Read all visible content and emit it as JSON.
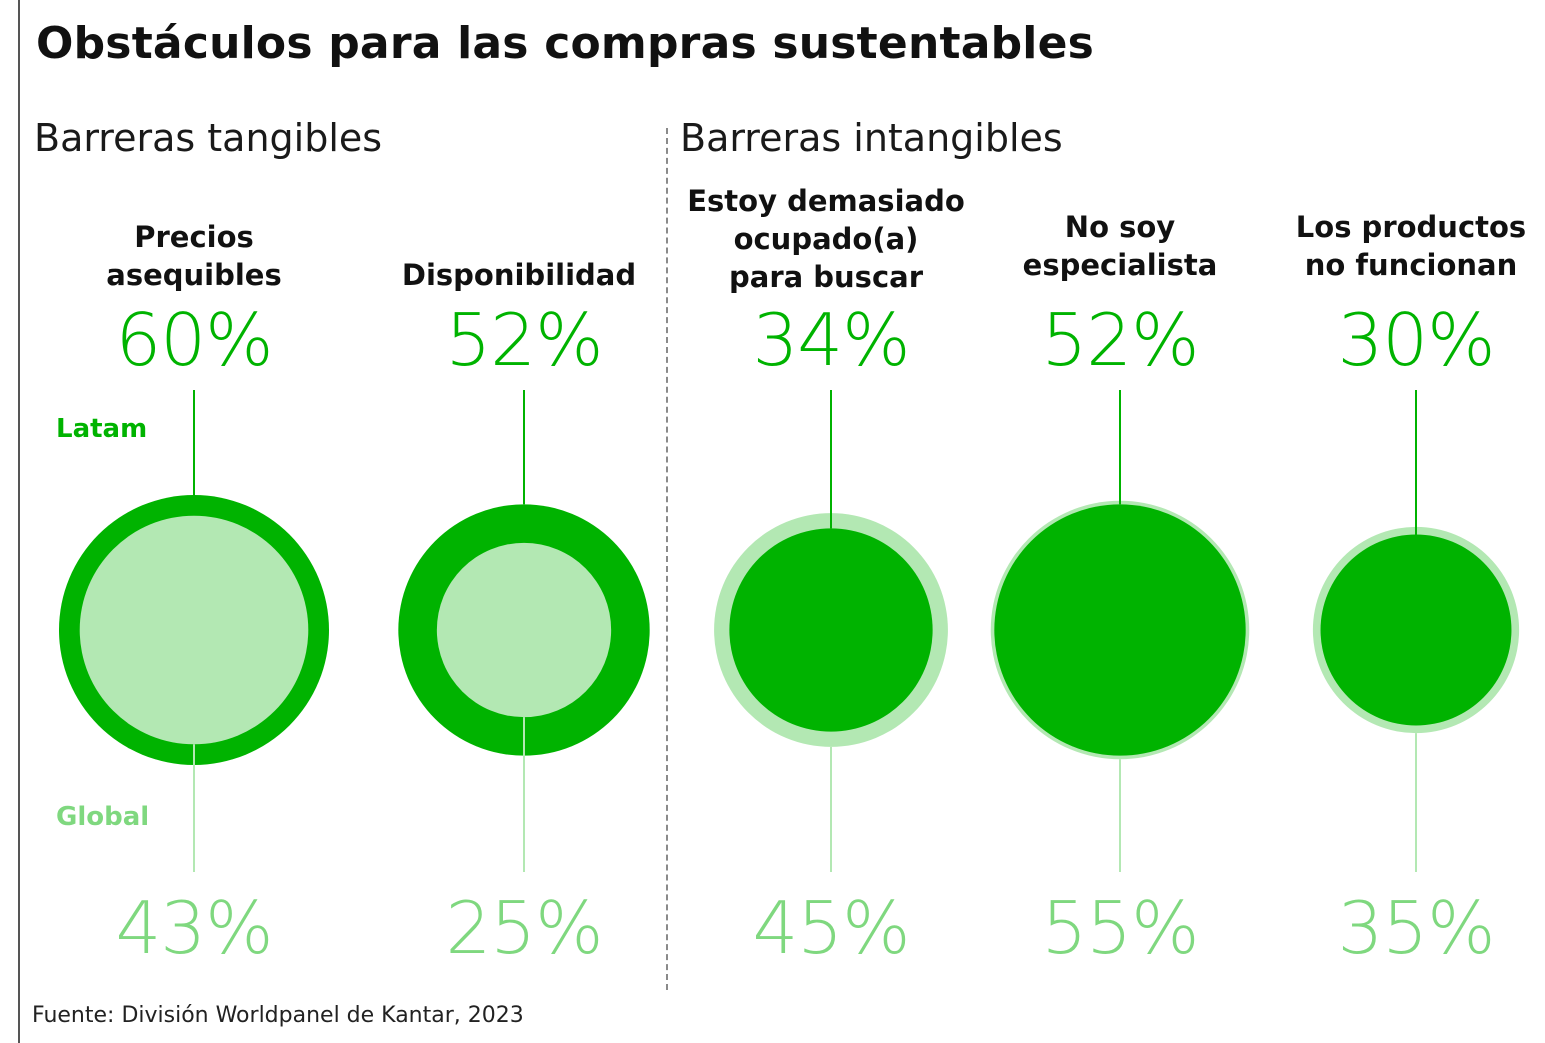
{
  "title": "Obstáculos para las compras sustentables",
  "source": "Fuente: División Worldpanel de Kantar, 2023",
  "colors": {
    "latam": "#00b300",
    "global": "#b3e8b3",
    "global_text": "#7fd87f"
  },
  "chart_data": {
    "type": "bubble",
    "title": "Obstáculos para las compras sustentables",
    "series": [
      {
        "name": "Latam",
        "values": [
          60,
          52,
          34,
          52,
          30
        ]
      },
      {
        "name": "Global",
        "values": [
          43,
          25,
          45,
          55,
          35
        ]
      }
    ],
    "groups": [
      {
        "name": "Barreras tangibles",
        "categories": [
          "Precios asequibles",
          "Disponibilidad"
        ]
      },
      {
        "name": "Barreras intangibles",
        "categories": [
          "Estoy demasiado ocupado(a) para buscar",
          "No soy especialista",
          "Los productos no funcionan"
        ]
      }
    ],
    "items": [
      {
        "label": "Precios\nasequibles",
        "latam": 60,
        "global": 43,
        "latam_label": "60%",
        "global_label": "43%"
      },
      {
        "label": "Disponibilidad",
        "latam": 52,
        "global": 25,
        "latam_label": "52%",
        "global_label": "25%"
      },
      {
        "label": "Estoy demasiado\nocupado(a)\npara buscar",
        "latam": 34,
        "global": 45,
        "latam_label": "34%",
        "global_label": "45%"
      },
      {
        "label": "No soy\nespecialista",
        "latam": 52,
        "global": 55,
        "latam_label": "52%",
        "global_label": "55%"
      },
      {
        "label": "Los productos\nno funcionan",
        "latam": 30,
        "global": 35,
        "latam_label": "30%",
        "global_label": "35%"
      }
    ],
    "unit": "%"
  }
}
